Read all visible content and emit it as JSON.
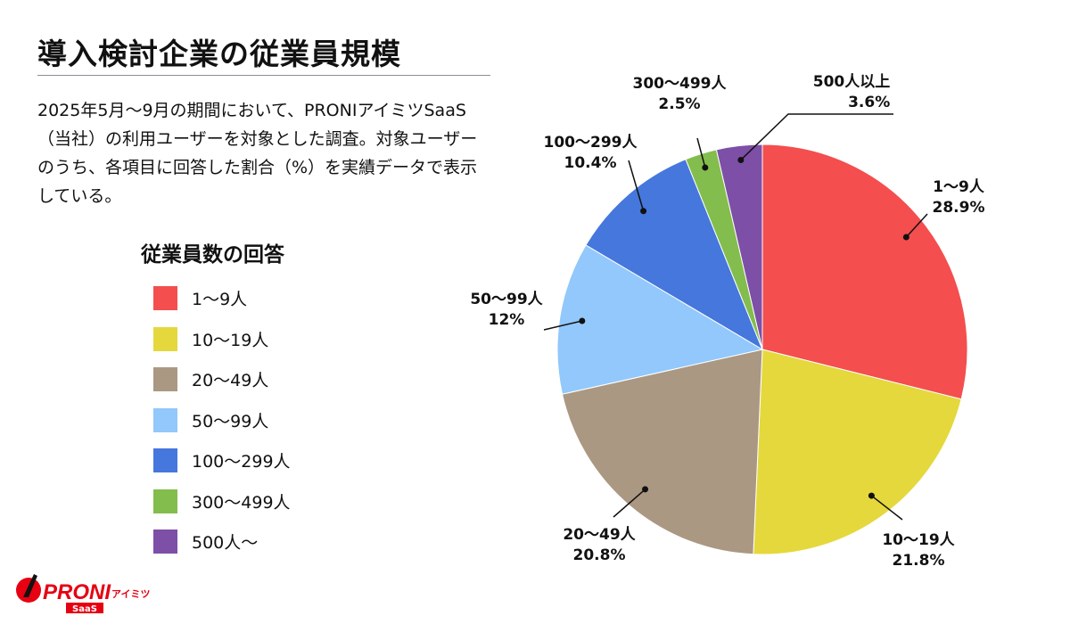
{
  "title": "導入検討企業の従業員規模",
  "description": "2025年5月〜9月の期間において、PRONIアイミツSaaS（当社）の利用ユーザーを対象とした調査。対象ユーザーのうち、各項目に回答した割合（%）を実績データで表示している。",
  "logo": {
    "text": "PRONIアイミツ SaaS",
    "color": "#e60012"
  },
  "chart_data": {
    "type": "pie",
    "legend_title": "従業員数の回答",
    "legend_placement": "left",
    "start": "top, clockwise",
    "categories": [
      "1〜9人",
      "10〜19人",
      "20〜49人",
      "50〜99人",
      "100〜299人",
      "300〜499人",
      "500人〜"
    ],
    "values": [
      28.9,
      21.8,
      20.8,
      12,
      10.4,
      2.5,
      3.6
    ],
    "labels": [
      {
        "name": "1〜9人",
        "value": "28.9%"
      },
      {
        "name": "10〜19人",
        "value": "21.8%"
      },
      {
        "name": "20〜49人",
        "value": "20.8%"
      },
      {
        "name": "50〜99人",
        "value": "12%"
      },
      {
        "name": "100〜299人",
        "value": "10.4%"
      },
      {
        "name": "300〜499人",
        "value": "2.5%"
      },
      {
        "name": "500人以上",
        "value": "3.6%"
      }
    ],
    "colors": [
      "#f44e4e",
      "#e5d83c",
      "#ab9882",
      "#92c8fb",
      "#4577dd",
      "#83bd4d",
      "#7d4fa6"
    ]
  }
}
